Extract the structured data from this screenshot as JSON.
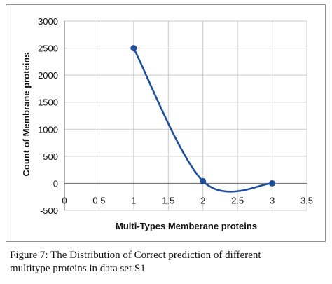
{
  "chart_data": {
    "type": "line",
    "xlabel": "Multi-Types Memberane proteins",
    "ylabel": "Count of Membrane proteins",
    "xlim": [
      0,
      3.5
    ],
    "ylim": [
      -500,
      3000
    ],
    "xticks": [
      "0",
      "0.5",
      "1",
      "1.5",
      "2",
      "2.5",
      "3",
      "3.5"
    ],
    "yticks": [
      "3000",
      "2500",
      "2000",
      "1500",
      "1000",
      "500",
      "0",
      "-500"
    ],
    "grid": true,
    "legend": "none",
    "series": [
      {
        "x": [
          1,
          2,
          3
        ],
        "y": [
          2500,
          40,
          0
        ],
        "color": "#1f4e9c",
        "smooth": true
      }
    ]
  },
  "caption": {
    "line1": "Figure 7: The Distribution of Correct prediction of different",
    "line2": "multitype proteins in data set S1"
  }
}
